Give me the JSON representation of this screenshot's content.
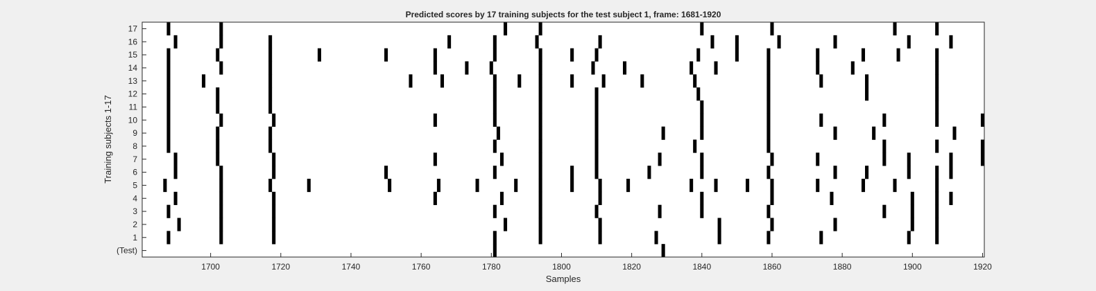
{
  "chart_data": {
    "type": "heatmap",
    "title": "Predicted scores by 17 training subjects for the test subject 1, frame: 1681-1920",
    "xlabel": "Samples",
    "ylabel": "Training subjects 1-17",
    "xlim": [
      1681,
      1920
    ],
    "x_ticks": [
      1700,
      1720,
      1740,
      1760,
      1780,
      1800,
      1820,
      1840,
      1860,
      1880,
      1900,
      1920
    ],
    "y_tick_labels": [
      "(Test)",
      "1",
      "2",
      "3",
      "4",
      "5",
      "6",
      "7",
      "8",
      "9",
      "10",
      "11",
      "12",
      "13",
      "14",
      "15",
      "16",
      "17"
    ],
    "grid": false,
    "colors": {
      "mark": "#000000",
      "background": "#ffffff",
      "figure": "#f0f0f0"
    },
    "rows": [
      {
        "label": "(Test)",
        "x": [
          1781,
          1829
        ]
      },
      {
        "label": "1",
        "x": [
          1688,
          1703,
          1718,
          1781,
          1794,
          1811,
          1827,
          1845,
          1859,
          1874,
          1899,
          1907
        ]
      },
      {
        "label": "2",
        "x": [
          1691,
          1703,
          1718,
          1784,
          1794,
          1811,
          1845,
          1860,
          1878,
          1900,
          1907
        ]
      },
      {
        "label": "3",
        "x": [
          1688,
          1703,
          1718,
          1781,
          1794,
          1810,
          1828,
          1840,
          1859,
          1892,
          1900,
          1907
        ]
      },
      {
        "label": "4",
        "x": [
          1690,
          1703,
          1718,
          1764,
          1783,
          1794,
          1811,
          1840,
          1860,
          1877,
          1900,
          1907,
          1911
        ]
      },
      {
        "label": "5",
        "x": [
          1687,
          1703,
          1717,
          1728,
          1751,
          1765,
          1776,
          1787,
          1794,
          1803,
          1811,
          1819,
          1837,
          1844,
          1853,
          1860,
          1873,
          1886,
          1895,
          1907
        ]
      },
      {
        "label": "6",
        "x": [
          1690,
          1703,
          1718,
          1750,
          1781,
          1794,
          1803,
          1810,
          1825,
          1840,
          1859,
          1878,
          1887,
          1899,
          1907,
          1911
        ]
      },
      {
        "label": "7",
        "x": [
          1690,
          1702,
          1718,
          1764,
          1783,
          1794,
          1810,
          1828,
          1840,
          1860,
          1873,
          1892,
          1899,
          1911,
          1920
        ]
      },
      {
        "label": "8",
        "x": [
          1688,
          1702,
          1717,
          1781,
          1794,
          1810,
          1838,
          1859,
          1892,
          1907,
          1920
        ]
      },
      {
        "label": "9",
        "x": [
          1688,
          1702,
          1717,
          1782,
          1794,
          1810,
          1829,
          1840,
          1859,
          1878,
          1889,
          1912
        ]
      },
      {
        "label": "10",
        "x": [
          1688,
          1703,
          1718,
          1764,
          1781,
          1794,
          1810,
          1840,
          1859,
          1874,
          1892,
          1907,
          1920
        ]
      },
      {
        "label": "11",
        "x": [
          1688,
          1702,
          1717,
          1781,
          1794,
          1810,
          1840,
          1859,
          1907
        ]
      },
      {
        "label": "12",
        "x": [
          1688,
          1702,
          1717,
          1781,
          1794,
          1810,
          1839,
          1859,
          1887,
          1907
        ]
      },
      {
        "label": "13",
        "x": [
          1688,
          1698,
          1717,
          1757,
          1766,
          1781,
          1788,
          1794,
          1803,
          1812,
          1823,
          1838,
          1859,
          1874,
          1887,
          1907
        ]
      },
      {
        "label": "14",
        "x": [
          1688,
          1703,
          1717,
          1764,
          1773,
          1780,
          1794,
          1809,
          1818,
          1837,
          1844,
          1859,
          1873,
          1883,
          1907
        ]
      },
      {
        "label": "15",
        "x": [
          1688,
          1702,
          1717,
          1731,
          1750,
          1764,
          1781,
          1794,
          1803,
          1810,
          1839,
          1850,
          1859,
          1873,
          1886,
          1896,
          1907
        ]
      },
      {
        "label": "16",
        "x": [
          1690,
          1703,
          1717,
          1768,
          1781,
          1793,
          1811,
          1843,
          1850,
          1862,
          1878,
          1899,
          1911
        ]
      },
      {
        "label": "17",
        "x": [
          1688,
          1703,
          1784,
          1794,
          1840,
          1860,
          1895,
          1907
        ]
      }
    ]
  }
}
